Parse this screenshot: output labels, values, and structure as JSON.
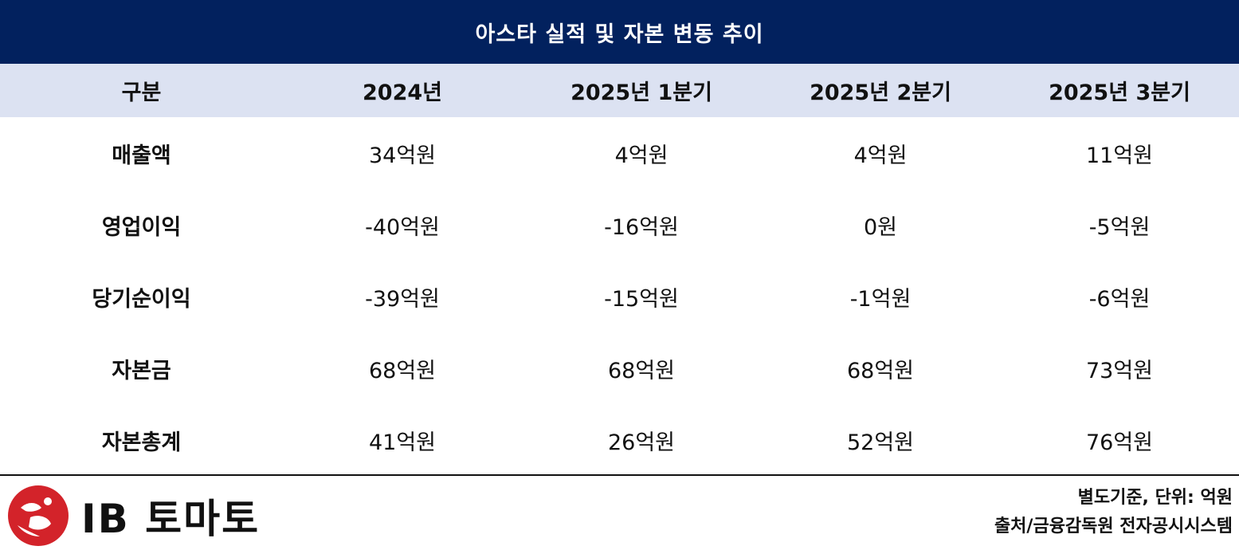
{
  "title": "아스타 실적 및 자본 변동 추이",
  "columns": [
    "구분",
    "2024년",
    "2025년 1분기",
    "2025년 2분기",
    "2025년 3분기"
  ],
  "rows": [
    {
      "label": "매출액",
      "values": [
        "34억원",
        "4억원",
        "4억원",
        "11억원"
      ]
    },
    {
      "label": "영업이익",
      "values": [
        "-40억원",
        "-16억원",
        "0원",
        "-5억원"
      ]
    },
    {
      "label": "당기순이익",
      "values": [
        "-39억원",
        "-15억원",
        "-1억원",
        "-6억원"
      ]
    },
    {
      "label": "자본금",
      "values": [
        "68억원",
        "68억원",
        "68억원",
        "73억원"
      ]
    },
    {
      "label": "자본총계",
      "values": [
        "41억원",
        "26억원",
        "52억원",
        "76억원"
      ]
    }
  ],
  "footer": {
    "logo_text": "IB 토마토",
    "note_basis": "별도기준, 단위: 억원",
    "note_source": "출처/금융감독원 전자공시시스템"
  },
  "colors": {
    "title_bg": "#02215e",
    "header_bg": "#dce2f2",
    "logo_red": "#d3232a"
  }
}
